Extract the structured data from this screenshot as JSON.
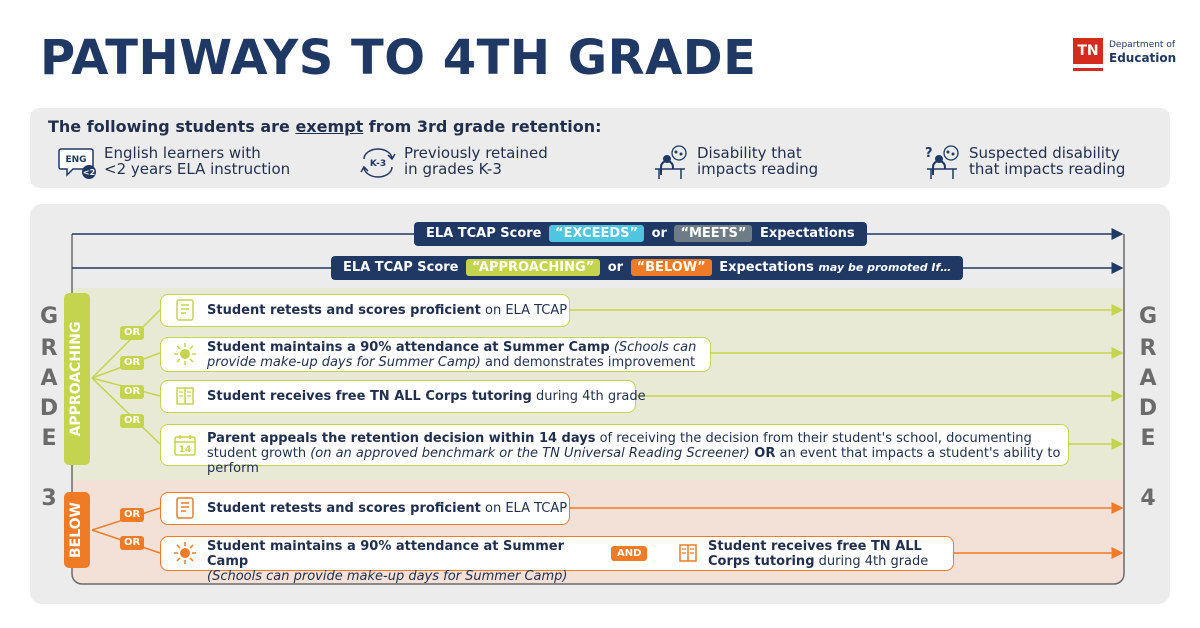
{
  "title": "PATHWAYS TO 4TH GRADE",
  "logo": {
    "abbr": "TN",
    "line1": "Department of",
    "line2": "Education"
  },
  "exempt": {
    "heading_pre": "The following students are ",
    "heading_em": "exempt",
    "heading_post": " from 3rd grade retention:",
    "items": [
      {
        "icon": "eng-speech-bubble-icon",
        "icon_text": "ENG",
        "icon_badge": "<2",
        "line1": "English learners with",
        "line2": "<2 years ELA instruction"
      },
      {
        "icon": "k3-cycle-arrows-icon",
        "icon_text": "K-3",
        "line1": "Previously retained",
        "line2": "in grades K-3"
      },
      {
        "icon": "student-desk-icon",
        "line1": "Disability that",
        "line2": "impacts reading"
      },
      {
        "icon": "student-desk-question-icon",
        "line1": "Suspected disability",
        "line2": "that impacts reading"
      }
    ]
  },
  "grade_left": {
    "letters": [
      "G",
      "R",
      "A",
      "D",
      "E"
    ],
    "number": "3"
  },
  "grade_right": {
    "letters": [
      "G",
      "R",
      "A",
      "D",
      "E"
    ],
    "number": "4"
  },
  "pill_top": {
    "pre": "ELA TCAP Score",
    "tag1": "“EXCEEDS”",
    "mid": "or",
    "tag2": "“MEETS”",
    "post": "Expectations"
  },
  "pill_second": {
    "pre": "ELA TCAP Score",
    "tag1": "“APPROACHING”",
    "mid": "or",
    "tag2": "“BELOW”",
    "post": "Expectations",
    "suffix": "may be promoted If…"
  },
  "approaching_label": "APPROACHING",
  "below_label": "BELOW",
  "or_label": "OR",
  "and_label": "AND",
  "approaching_options": [
    {
      "icon": "test-sheet-icon",
      "bold": "Student retests and scores proficient",
      "rest": " on ELA TCAP"
    },
    {
      "icon": "summer-camp-sun-icon",
      "bold": "Student maintains a 90% attendance at Summer Camp",
      "italic": " (Schools can provide make-up days for Summer Camp)",
      "rest": " and demonstrates improvement"
    },
    {
      "icon": "book-tutoring-icon",
      "bold": "Student receives free TN ALL Corps tutoring",
      "rest": " during 4th grade"
    },
    {
      "icon": "calendar-14-icon",
      "icon_text": "14",
      "bold": "Parent appeals the retention decision within 14 days",
      "rest": " of receiving the decision from their student's school, documenting student growth",
      "italic": " (on an approved benchmark or the TN Universal Reading Screener)",
      "bold2": " OR",
      "rest2": " an event that impacts a student's ability to perform"
    }
  ],
  "below_options": [
    {
      "icon": "test-sheet-icon",
      "bold": "Student retests and scores proficient",
      "rest": " on ELA TCAP"
    },
    {
      "icon": "summer-camp-sun-icon",
      "bold": "Student maintains a 90% attendance at Summer Camp",
      "italic": "(Schools can provide make-up days for Summer Camp)",
      "icon2": "book-tutoring-icon",
      "bold2": "Student receives free TN ALL Corps tutoring",
      "rest2": " during 4th grade"
    }
  ],
  "colors": {
    "navy": "#1f3864",
    "green": "#c5d44e",
    "orange": "#ef7b27",
    "cyan": "#4ec6e0"
  }
}
